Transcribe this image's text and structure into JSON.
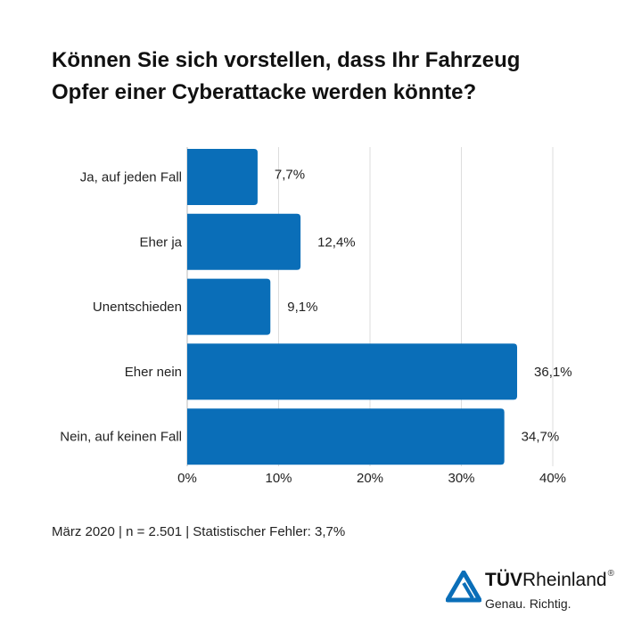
{
  "title_lines": [
    "Können Sie sich vorstellen, dass Ihr Fahrzeug",
    "Opfer einer Cyberattacke werden könnte?"
  ],
  "chart_data": {
    "type": "bar",
    "orientation": "horizontal",
    "categories": [
      "Ja, auf jeden Fall",
      "Eher ja",
      "Unentschieden",
      "Eher nein",
      "Nein, auf keinen Fall"
    ],
    "values": [
      7.7,
      12.4,
      9.1,
      36.1,
      34.7
    ],
    "data_labels": [
      "7,7%",
      "12,4%",
      "9,1%",
      "36,1%",
      "34,7%"
    ],
    "xlim": [
      0,
      40
    ],
    "xticks": [
      "0%",
      "10%",
      "20%",
      "30%",
      "40%"
    ],
    "grid": "vertical",
    "bar_color": "#0a6eb8"
  },
  "footnote": "März 2020 | n = 2.501 | Statistischer Fehler: 3,7%",
  "logo": {
    "brand_bold": "TÜV",
    "brand_rest": "Rheinland",
    "registered": "®",
    "tagline": "Genau. Richtig.",
    "color": "#0a6eb8"
  }
}
